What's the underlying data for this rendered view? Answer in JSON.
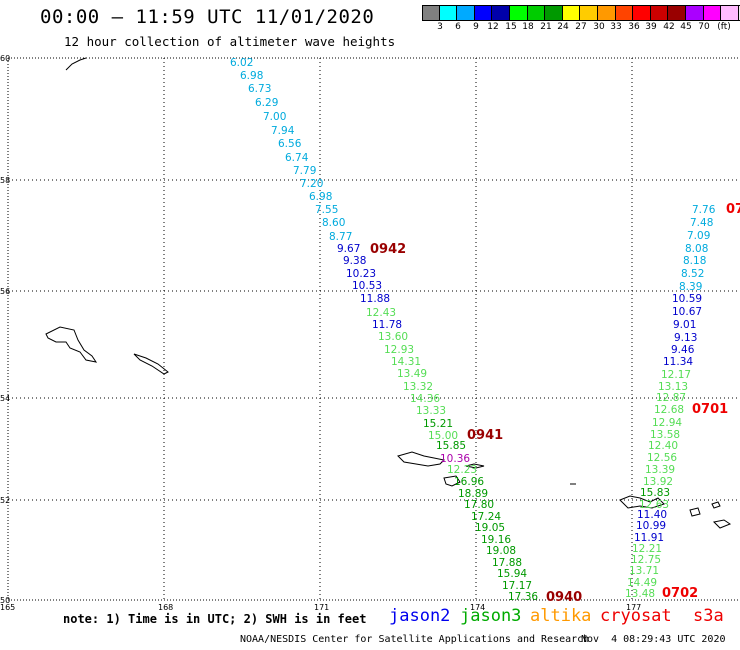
{
  "header": {
    "title": "00:00 – 11:59 UTC 11/01/2020",
    "subtitle": "12 hour collection of altimeter wave heights"
  },
  "legend": {
    "colors": [
      "#808080",
      "#00ffff",
      "#00aaff",
      "#0000ff",
      "#0000aa",
      "#00ff00",
      "#00cc00",
      "#009900",
      "#ffff00",
      "#ffcc00",
      "#ff9900",
      "#ff4400",
      "#ff0000",
      "#cc0000",
      "#990000",
      "#aa00ff",
      "#ff00ff",
      "#ffbbff",
      "#eeeeee",
      "#000000"
    ],
    "labels": [
      "3",
      "6",
      "9",
      "12",
      "15",
      "18",
      "21",
      "24",
      "27",
      "30",
      "33",
      "36",
      "39",
      "42",
      "45",
      "70",
      "(ft)"
    ]
  },
  "axes": {
    "lon_labels": [
      "165",
      "168",
      "171",
      "174",
      "177"
    ],
    "lat_labels": [
      "60",
      "58",
      "56",
      "54",
      "52",
      "50"
    ]
  },
  "tracks": [
    {
      "id": "track-west",
      "time_label": "0942",
      "time_label2": "0941",
      "time_label3": "0940",
      "readings": [
        {
          "v": "6.02",
          "c": "#00aadd"
        },
        {
          "v": "6.98",
          "c": "#00aadd"
        },
        {
          "v": "6.73",
          "c": "#00aadd"
        },
        {
          "v": "6.29",
          "c": "#00aadd"
        },
        {
          "v": "7.00",
          "c": "#00aadd"
        },
        {
          "v": "7.94",
          "c": "#00aadd"
        },
        {
          "v": "6.56",
          "c": "#00aadd"
        },
        {
          "v": "6.74",
          "c": "#00aadd"
        },
        {
          "v": "7.79",
          "c": "#00aadd"
        },
        {
          "v": "7.20",
          "c": "#00aadd"
        },
        {
          "v": "6.98",
          "c": "#00aadd"
        },
        {
          "v": "7.55",
          "c": "#00aadd"
        },
        {
          "v": "8.60",
          "c": "#00aadd"
        },
        {
          "v": "8.77",
          "c": "#00aadd"
        },
        {
          "v": "9.67",
          "c": "#0000cc"
        },
        {
          "v": "9.38",
          "c": "#0000cc"
        },
        {
          "v": "10.23",
          "c": "#0000cc"
        },
        {
          "v": "10.53",
          "c": "#0000cc"
        },
        {
          "v": "11.88",
          "c": "#0000cc"
        },
        {
          "v": "12.43",
          "c": "#55dd55"
        },
        {
          "v": "11.78",
          "c": "#0000cc"
        },
        {
          "v": "13.60",
          "c": "#55dd55"
        },
        {
          "v": "12.93",
          "c": "#55dd55"
        },
        {
          "v": "14.31",
          "c": "#55dd55"
        },
        {
          "v": "13.49",
          "c": "#55dd55"
        },
        {
          "v": "13.32",
          "c": "#55dd55"
        },
        {
          "v": "14.36",
          "c": "#55dd55"
        },
        {
          "v": "13.33",
          "c": "#55dd55"
        },
        {
          "v": "15.21",
          "c": "#009900"
        },
        {
          "v": "15.00",
          "c": "#55dd55"
        },
        {
          "v": "15.85",
          "c": "#009900"
        },
        {
          "v": "10.36",
          "c": "#aa00aa"
        },
        {
          "v": "12.23",
          "c": "#55dd55"
        },
        {
          "v": "16.96",
          "c": "#009900"
        },
        {
          "v": "18.89",
          "c": "#009900"
        },
        {
          "v": "17.80",
          "c": "#009900"
        },
        {
          "v": "17.24",
          "c": "#009900"
        },
        {
          "v": "19.05",
          "c": "#009900"
        },
        {
          "v": "19.16",
          "c": "#009900"
        },
        {
          "v": "19.08",
          "c": "#009900"
        },
        {
          "v": "17.88",
          "c": "#009900"
        },
        {
          "v": "15.94",
          "c": "#009900"
        },
        {
          "v": "17.17",
          "c": "#009900"
        },
        {
          "v": "17.36",
          "c": "#009900"
        }
      ]
    },
    {
      "id": "track-east",
      "time_label": "0701",
      "time_label2": "0702",
      "readings": [
        {
          "v": "7.76",
          "c": "#00aadd"
        },
        {
          "v": "7.48",
          "c": "#00aadd"
        },
        {
          "v": "7.09",
          "c": "#00aadd"
        },
        {
          "v": "8.08",
          "c": "#00aadd"
        },
        {
          "v": "8.18",
          "c": "#00aadd"
        },
        {
          "v": "8.52",
          "c": "#00aadd"
        },
        {
          "v": "8.39",
          "c": "#00aadd"
        },
        {
          "v": "10.59",
          "c": "#0000cc"
        },
        {
          "v": "10.67",
          "c": "#0000cc"
        },
        {
          "v": "9.01",
          "c": "#0000cc"
        },
        {
          "v": "9.13",
          "c": "#0000cc"
        },
        {
          "v": "9.46",
          "c": "#0000cc"
        },
        {
          "v": "11.34",
          "c": "#0000cc"
        },
        {
          "v": "12.17",
          "c": "#55dd55"
        },
        {
          "v": "13.13",
          "c": "#55dd55"
        },
        {
          "v": "12.87",
          "c": "#55dd55"
        },
        {
          "v": "12.68",
          "c": "#55dd55"
        },
        {
          "v": "12.94",
          "c": "#55dd55"
        },
        {
          "v": "13.58",
          "c": "#55dd55"
        },
        {
          "v": "12.40",
          "c": "#55dd55"
        },
        {
          "v": "12.56",
          "c": "#55dd55"
        },
        {
          "v": "13.39",
          "c": "#55dd55"
        },
        {
          "v": "13.92",
          "c": "#55dd55"
        },
        {
          "v": "15.83",
          "c": "#009900"
        },
        {
          "v": "12.63",
          "c": "#55dd55"
        },
        {
          "v": "11.40",
          "c": "#0000cc"
        },
        {
          "v": "10.99",
          "c": "#0000cc"
        },
        {
          "v": "11.91",
          "c": "#0000cc"
        },
        {
          "v": "12.21",
          "c": "#55dd55"
        },
        {
          "v": "12.75",
          "c": "#55dd55"
        },
        {
          "v": "13.71",
          "c": "#55dd55"
        },
        {
          "v": "14.49",
          "c": "#55dd55"
        },
        {
          "v": "13.48",
          "c": "#55dd55"
        }
      ],
      "offmap_label": "07"
    }
  ],
  "footer": {
    "note": "note: 1) Time is in UTC; 2) SWH is in feet",
    "satellites": [
      {
        "name": "jason2",
        "color": "#0000ee"
      },
      {
        "name": "jason3",
        "color": "#00aa00"
      },
      {
        "name": "altika",
        "color": "#ff9900"
      },
      {
        "name": "cryosat",
        "color": "#ee0000"
      },
      {
        "name": "s3a",
        "color": "#ee0000"
      }
    ],
    "credit": "NOAA/NESDIS Center for Satellite Applications and Research",
    "timestamp": "Nov  4 08:29:43 UTC 2020"
  }
}
